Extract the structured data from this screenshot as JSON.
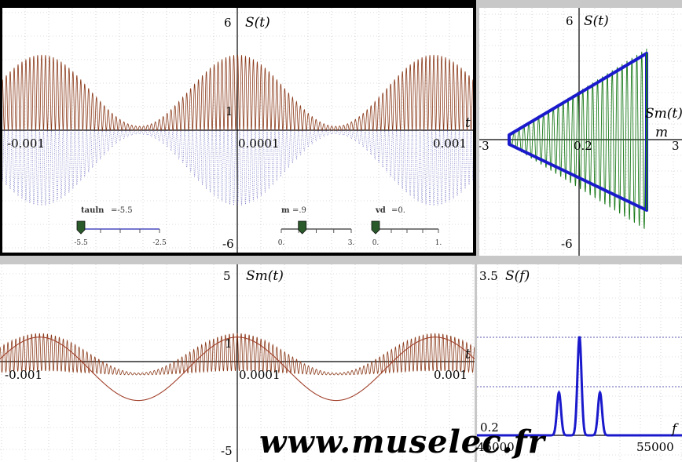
{
  "chart_data": [
    {
      "type": "line",
      "title": "",
      "ylabel": "S(t)",
      "xlabel": "t",
      "ylim": [
        -6,
        6
      ],
      "xlim": [
        -0.0012,
        0.0012
      ],
      "x_ticks": [
        "-0.001",
        "0.0001",
        "0.001"
      ],
      "y_ticks": [
        "6",
        "1",
        "-6"
      ],
      "series": [
        {
          "values_desc": [],
          "color": "#8b3a1a"
        },
        {
          "values_desc": [],
          "color": "#6c6cc0"
        }
      ],
      "carrier_hz": 50000,
      "modulation_hz": 1000,
      "modulation_index": 0.9,
      "sliders": [
        {
          "label": "tauln",
          "value": "=-5.5",
          "min": "-5.5",
          "max": "-2.5",
          "position": 0
        },
        {
          "label": "m",
          "value": "=.9",
          "min": "0.",
          "max": "3.",
          "position": 0.3
        },
        {
          "label": "vd",
          "value": "=0.",
          "min": "0.",
          "max": "1.",
          "position": 0
        }
      ]
    },
    {
      "type": "line",
      "title": "",
      "ylabel": "S(t)",
      "xlabel": "m",
      "xlabel2": "Sm(t)",
      "ylim": [
        -6,
        6
      ],
      "xlim": [
        -3,
        3
      ],
      "x_ticks": [
        "-3",
        "0.2",
        "3"
      ],
      "y_ticks": [
        "6",
        "-6"
      ],
      "series": [
        {
          "color": "#1a1acc"
        },
        {
          "color": "#1a7a1a"
        }
      ]
    },
    {
      "type": "line",
      "title": "",
      "ylabel": "Sm(t)",
      "xlabel": "t",
      "ylim": [
        -5,
        5
      ],
      "xlim": [
        -0.0012,
        0.0012
      ],
      "x_ticks": [
        "-0.001",
        "0.0001",
        "0.001"
      ],
      "y_ticks": [
        "5",
        "1",
        "-5"
      ],
      "series": [
        {
          "color": "#8b3a1a"
        },
        {
          "color": "#a0402a"
        }
      ]
    },
    {
      "type": "line",
      "title": "",
      "ylabel": "S(f)",
      "xlabel": "f",
      "ylim": [
        0.2,
        3.5
      ],
      "xlim": [
        45000,
        55000
      ],
      "x_ticks": [
        "45000",
        "55000"
      ],
      "y_ticks": [
        "3.5",
        "0.2"
      ],
      "series": [
        {
          "color": "#1a1acc",
          "peaks": [
            {
              "f": 49000,
              "a": 1.3
            },
            {
              "f": 50000,
              "a": 3.0
            },
            {
              "f": 51000,
              "a": 1.3
            }
          ]
        }
      ]
    }
  ],
  "watermark": "www.muselec.fr"
}
